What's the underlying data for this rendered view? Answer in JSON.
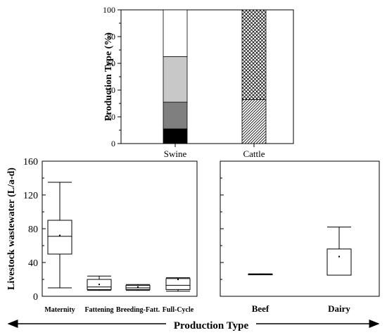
{
  "chart_data": [
    {
      "type": "bar",
      "stacked": true,
      "ylabel": "Production Type (%)",
      "ylim": [
        0,
        100
      ],
      "yticks": [
        "0",
        "20",
        "40",
        "60",
        "80",
        "100"
      ],
      "categories": [
        "Swine",
        "Cattle"
      ],
      "series": [
        {
          "category": "Swine",
          "segments": [
            {
              "from": 0,
              "to": 11,
              "fill": "#000000",
              "pattern": "solid"
            },
            {
              "from": 11,
              "to": 31,
              "fill": "#7f7f7f",
              "pattern": "solid"
            },
            {
              "from": 31,
              "to": 65,
              "fill": "#c8c8c8",
              "pattern": "solid"
            },
            {
              "from": 65,
              "to": 100,
              "fill": "#ffffff",
              "pattern": "solid"
            }
          ]
        },
        {
          "category": "Cattle",
          "segments": [
            {
              "from": 0,
              "to": 33,
              "fill": "#ffffff",
              "pattern": "diagonal"
            },
            {
              "from": 33,
              "to": 100,
              "fill": "#ffffff",
              "pattern": "crosshatch"
            }
          ]
        }
      ]
    },
    {
      "type": "box",
      "ylabel": "Livestock wastewater (L/a-d)",
      "ylim": [
        0,
        160
      ],
      "yticks": [
        "0",
        "40",
        "80",
        "120",
        "160"
      ],
      "categories": [
        "Maternity",
        "Fattening",
        "Breeding-Fatt.",
        "Full-Cycle"
      ],
      "boxes": [
        {
          "min": 10,
          "q1": 50,
          "median": 71,
          "q3": 90,
          "max": 135,
          "mean": 72
        },
        {
          "min": 7,
          "q1": 8,
          "median": 11,
          "q3": 20,
          "max": 24,
          "mean": 14
        },
        {
          "min": 7,
          "q1": 8,
          "median": 10,
          "q3": 13,
          "max": 14,
          "mean": 11
        },
        {
          "min": 6,
          "q1": 8,
          "median": 13,
          "q3": 21,
          "max": 22,
          "mean": 20
        }
      ]
    },
    {
      "type": "box",
      "ylim": [
        0,
        160
      ],
      "yticks": [
        "0",
        "40",
        "80",
        "120",
        "160"
      ],
      "categories": [
        "Beef",
        "Dairy"
      ],
      "boxes": [
        {
          "min": 25.5,
          "q1": 25.5,
          "median": 26,
          "q3": 26.5,
          "max": 26.5,
          "mean": 26
        },
        {
          "min": 25,
          "q1": 25,
          "median": 25,
          "q3": 56,
          "max": 82,
          "mean": 47
        }
      ]
    }
  ],
  "footer": {
    "xlabel": "Production Type"
  }
}
